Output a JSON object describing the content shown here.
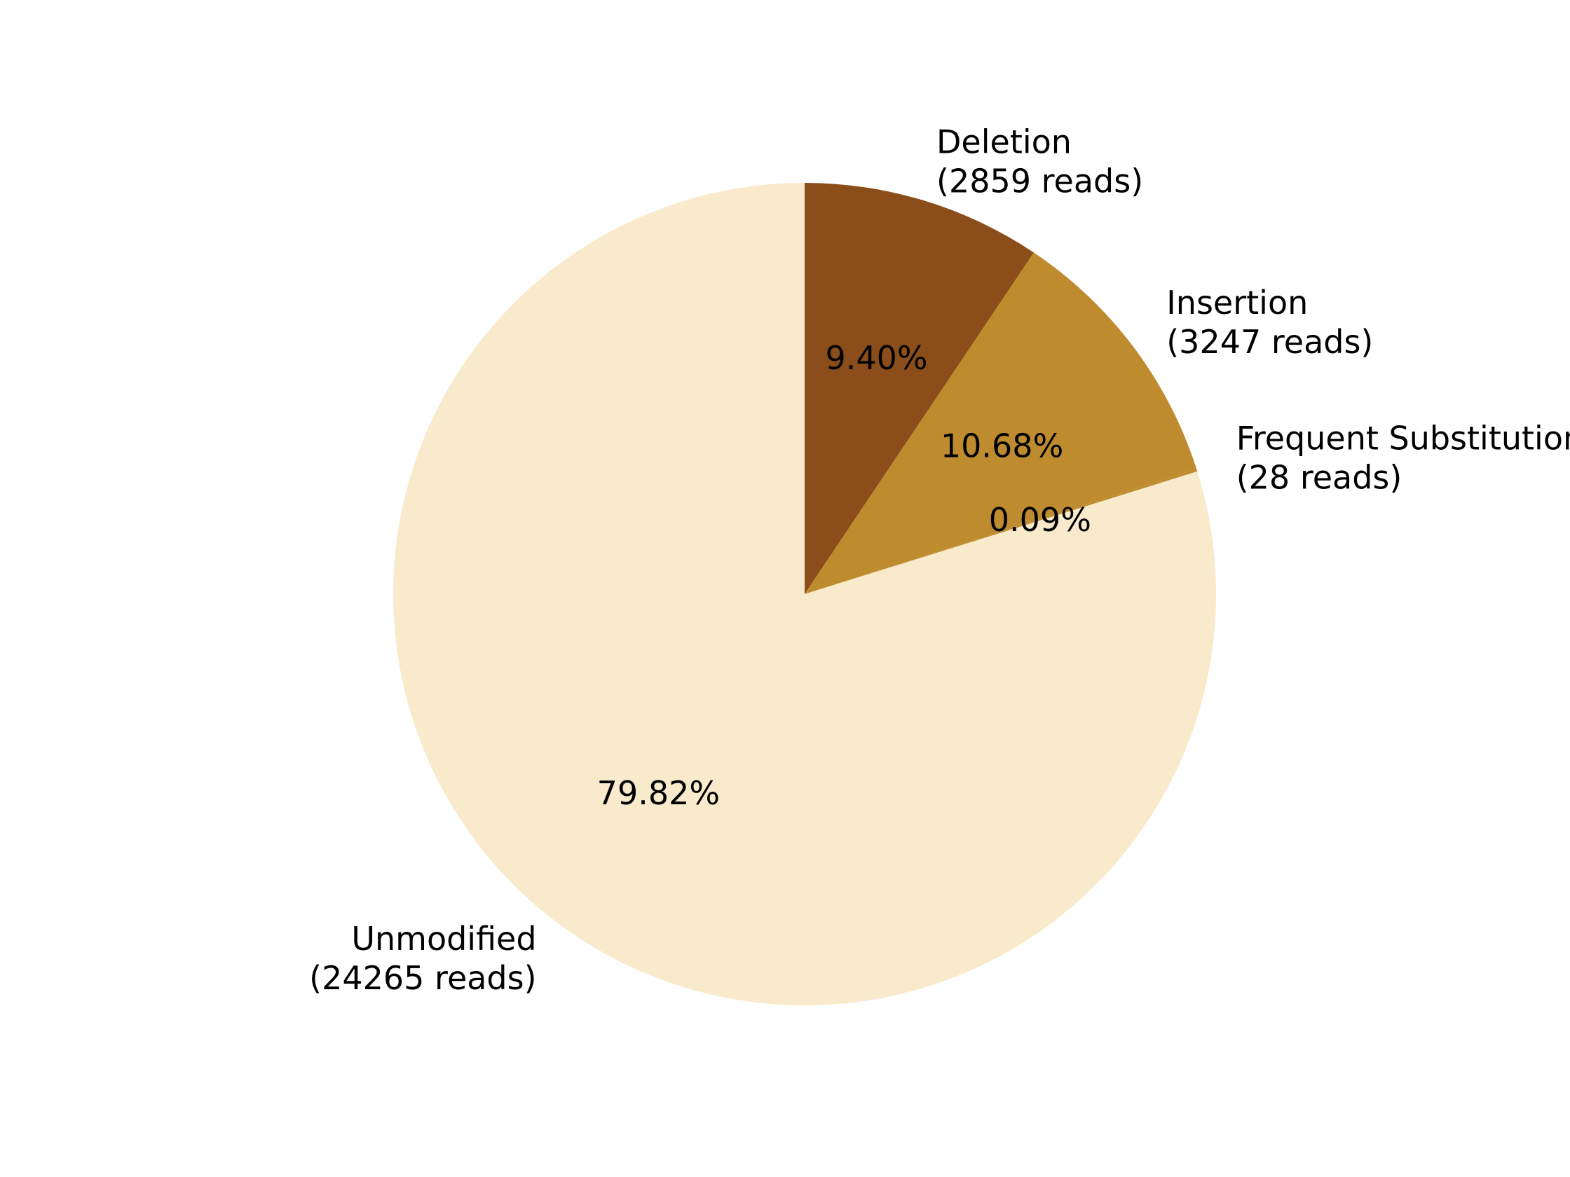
{
  "chart_data": {
    "type": "pie",
    "title": "",
    "start_angle_deg": 90,
    "direction": "clockwise",
    "slices": [
      {
        "label": "Deletion",
        "reads_label": "(2859 reads)",
        "reads": 2859,
        "percent_label": "9.40%",
        "color": "#8B4E1A"
      },
      {
        "label": "Insertion",
        "reads_label": "(3247 reads)",
        "reads": 3247,
        "percent_label": "10.68%",
        "color": "#BE8B2F"
      },
      {
        "label": "Frequent Substitution",
        "reads_label": "(28 reads)",
        "reads": 28,
        "percent_label": "0.09%",
        "color": "#BE8B2F"
      },
      {
        "label": "Unmodified",
        "reads_label": "(24265 reads)",
        "reads": 24265,
        "percent_label": "79.82%",
        "color": "#F8EACA"
      }
    ]
  }
}
